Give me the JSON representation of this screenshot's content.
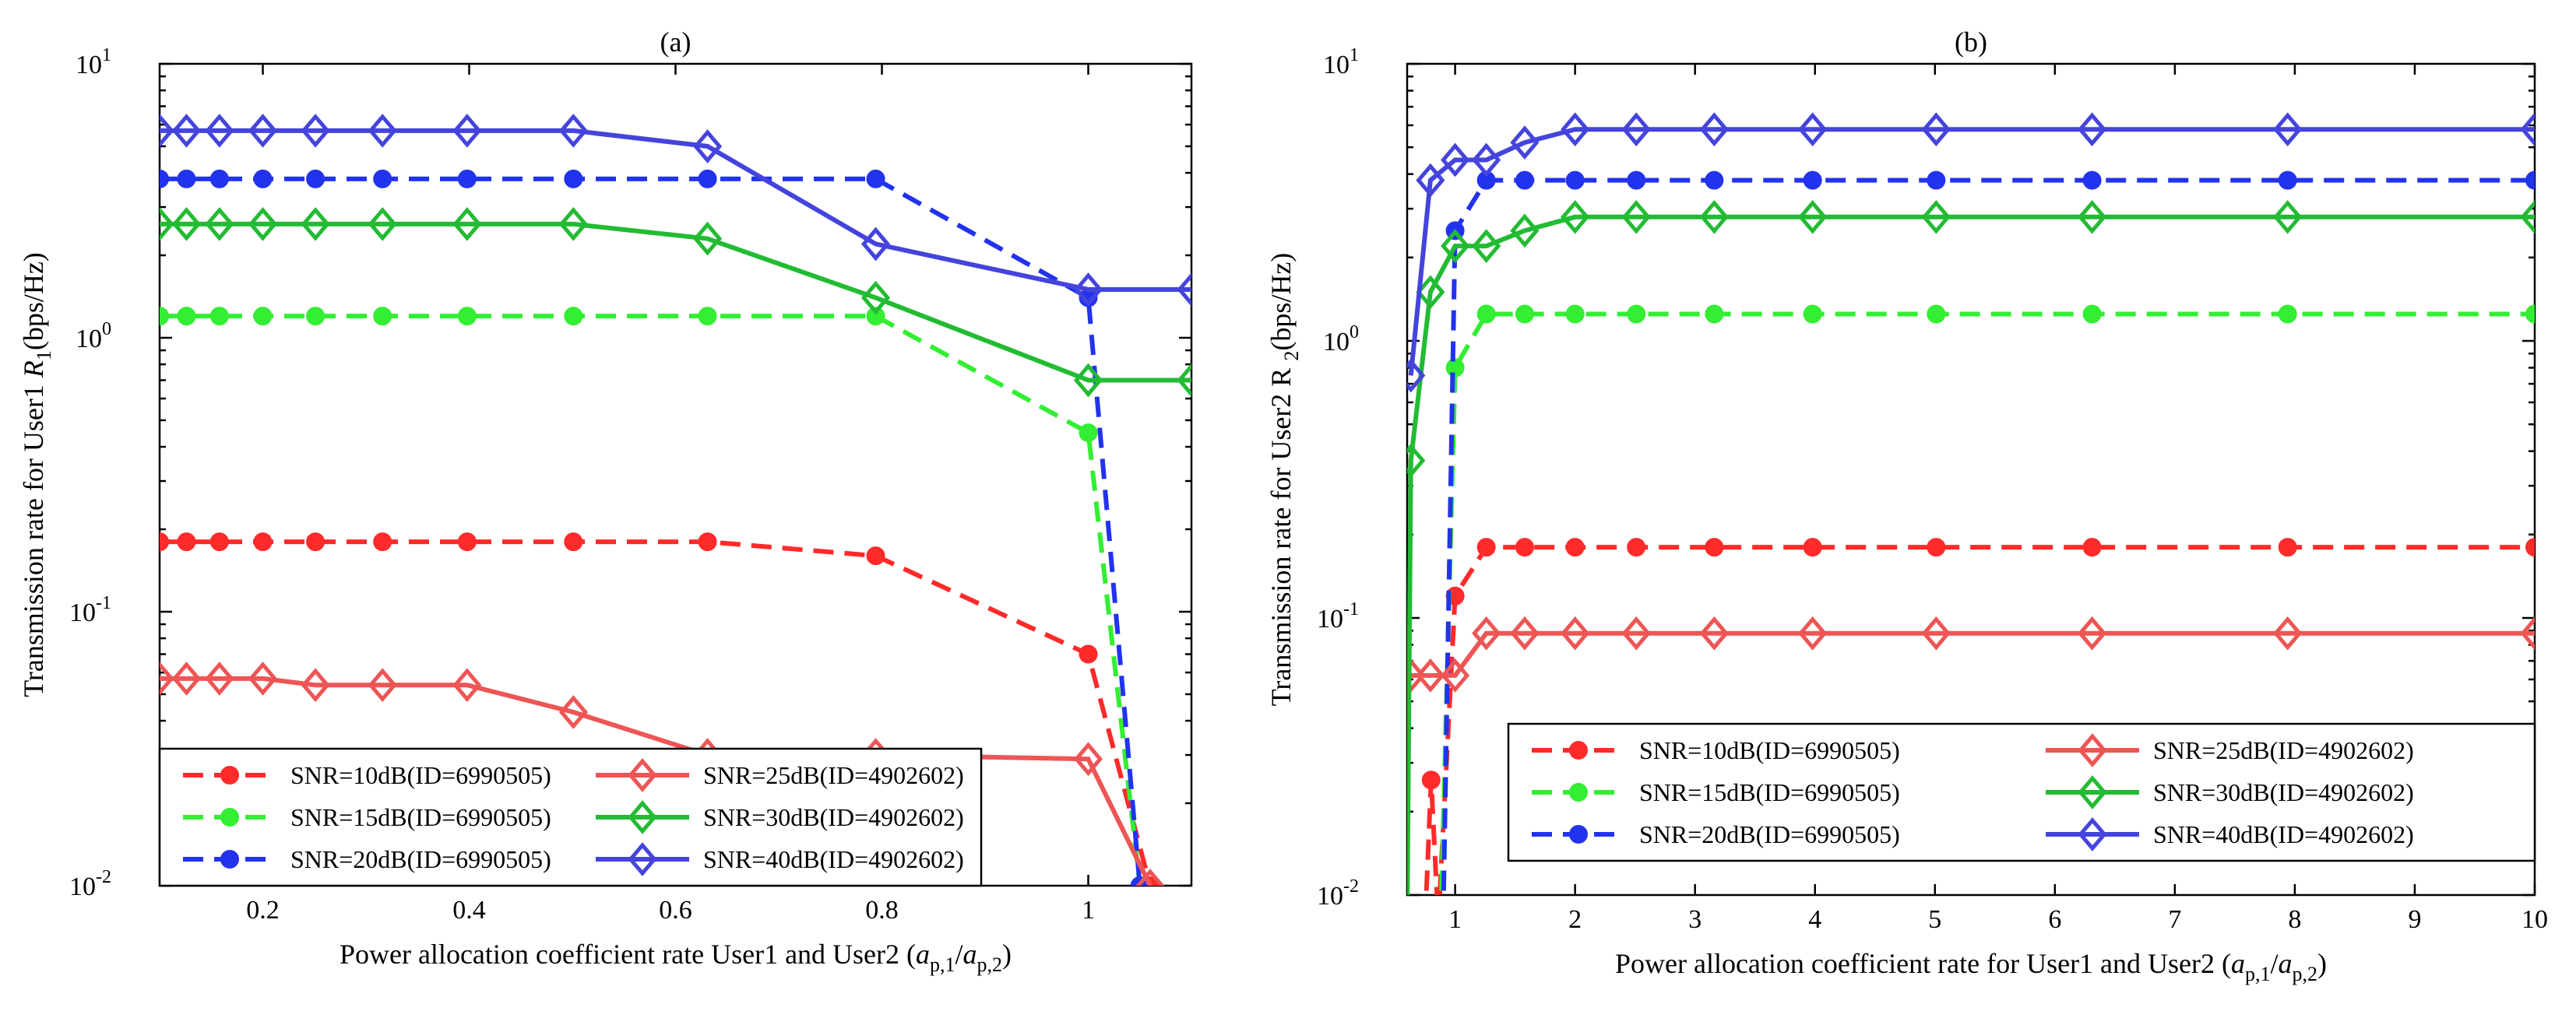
{
  "chart_data": [
    {
      "type": "line",
      "title": "(a)",
      "xlabel": "Power allocation coefficient rate User1 and User2 (",
      "xlabel_var": "a",
      "xlabel_sub1": "p,1",
      "xlabel_sub2": "p,2",
      "xlabel_close": ")",
      "ylabel": "Transmission rate for User1",
      "ylabel_var": "R",
      "ylabel_sub": "1",
      "ylabel_unit": "(bps/Hz)",
      "yscale": "log",
      "xlim": [
        0.1,
        1.1
      ],
      "ylim": [
        0.01,
        10
      ],
      "xticks": [
        0.2,
        0.4,
        0.6,
        0.8,
        1
      ],
      "xtick_labels": [
        "0.2",
        "0.4",
        "0.6",
        "0.8",
        "1"
      ],
      "yticks": [
        0.01,
        0.1,
        1,
        10
      ],
      "ytick_labels": [
        [
          "10",
          "-2"
        ],
        [
          "10",
          "-1"
        ],
        [
          "10",
          "0"
        ],
        [
          "10",
          "1"
        ]
      ],
      "legend_position": "lower-left",
      "series": [
        {
          "name": "SNR=10dB(ID=6990505)",
          "color": "#ff2a2a",
          "dash": "dashed",
          "marker": "circle",
          "x": [
            0.1,
            0.126,
            0.158,
            0.2,
            0.251,
            0.316,
            0.398,
            0.501,
            0.631,
            0.794,
            1.0,
            1.06
          ],
          "y": [
            0.18,
            0.18,
            0.18,
            0.18,
            0.18,
            0.18,
            0.18,
            0.18,
            0.18,
            0.16,
            0.07,
            0.01
          ]
        },
        {
          "name": "SNR=15dB(ID=6990505)",
          "color": "#33ee33",
          "dash": "dashed",
          "marker": "circle",
          "x": [
            0.1,
            0.126,
            0.158,
            0.2,
            0.251,
            0.316,
            0.398,
            0.501,
            0.631,
            0.794,
            1.0,
            1.05
          ],
          "y": [
            1.2,
            1.2,
            1.2,
            1.2,
            1.2,
            1.2,
            1.2,
            1.2,
            1.2,
            1.2,
            0.45,
            0.01
          ]
        },
        {
          "name": "SNR=20dB(ID=6990505)",
          "color": "#2233ee",
          "dash": "dashed",
          "marker": "circle",
          "x": [
            0.1,
            0.126,
            0.158,
            0.2,
            0.251,
            0.316,
            0.398,
            0.501,
            0.631,
            0.794,
            1.0,
            1.05
          ],
          "y": [
            3.8,
            3.8,
            3.8,
            3.8,
            3.8,
            3.8,
            3.8,
            3.8,
            3.8,
            3.8,
            1.4,
            0.01
          ]
        },
        {
          "name": "SNR=25dB(ID=4902602)",
          "color": "#ee5555",
          "dash": "solid",
          "marker": "diamond",
          "x": [
            0.1,
            0.126,
            0.158,
            0.2,
            0.251,
            0.316,
            0.398,
            0.501,
            0.631,
            0.794,
            1.0,
            1.06
          ],
          "y": [
            0.057,
            0.057,
            0.057,
            0.057,
            0.054,
            0.054,
            0.054,
            0.043,
            0.03,
            0.03,
            0.029,
            0.01
          ]
        },
        {
          "name": "SNR=30dB(ID=4902602)",
          "color": "#22bb33",
          "dash": "solid",
          "marker": "diamond",
          "x": [
            0.1,
            0.126,
            0.158,
            0.2,
            0.251,
            0.316,
            0.398,
            0.501,
            0.631,
            0.794,
            1.0,
            1.1
          ],
          "y": [
            2.6,
            2.6,
            2.6,
            2.6,
            2.6,
            2.6,
            2.6,
            2.6,
            2.3,
            1.4,
            0.7,
            0.7
          ]
        },
        {
          "name": "SNR=40dB(ID=4902602)",
          "color": "#4444dd",
          "dash": "solid",
          "marker": "diamond",
          "x": [
            0.1,
            0.126,
            0.158,
            0.2,
            0.251,
            0.316,
            0.398,
            0.501,
            0.631,
            0.794,
            1.0,
            1.1
          ],
          "y": [
            5.7,
            5.7,
            5.7,
            5.7,
            5.7,
            5.7,
            5.7,
            5.7,
            5.0,
            2.2,
            1.5,
            1.5
          ]
        }
      ]
    },
    {
      "type": "line",
      "title": "(b)",
      "xlabel": "Power allocation coefficient rate for User1 and User2 (",
      "xlabel_var": "a",
      "xlabel_sub1": "p,1",
      "xlabel_sub2": "p,2",
      "xlabel_close": ")",
      "ylabel": "Transmission rate for User2 R",
      "ylabel_sub": "2",
      "ylabel_unit": "(bps/Hz)",
      "yscale": "log",
      "xlim": [
        0.6,
        10
      ],
      "ylim": [
        0.01,
        10
      ],
      "xticks": [
        1,
        2,
        3,
        4,
        5,
        6,
        7,
        8,
        9,
        10
      ],
      "xtick_labels": [
        "1",
        "2",
        "3",
        "4",
        "5",
        "6",
        "7",
        "8",
        "9",
        "10"
      ],
      "yticks": [
        0.01,
        0.1,
        1,
        10
      ],
      "ytick_labels": [
        [
          "10",
          "-2"
        ],
        [
          "10",
          "-1"
        ],
        [
          "10",
          "0"
        ],
        [
          "10",
          "1"
        ]
      ],
      "legend_position": "lower-right",
      "series": [
        {
          "name": "SNR=10dB(ID=6990505)",
          "color": "#ff2a2a",
          "dash": "dashed",
          "marker": "circle",
          "x": [
            0.75,
            0.8,
            0.86,
            1.0,
            1.26,
            1.58,
            2.0,
            2.51,
            3.16,
            3.98,
            5.01,
            6.31,
            7.94,
            10
          ],
          "y": [
            0.008,
            0.026,
            0.008,
            0.12,
            0.18,
            0.18,
            0.18,
            0.18,
            0.18,
            0.18,
            0.18,
            0.18,
            0.18,
            0.18
          ]
        },
        {
          "name": "SNR=15dB(ID=6990505)",
          "color": "#33ee33",
          "dash": "dashed",
          "marker": "circle",
          "x": [
            0.88,
            1.0,
            1.26,
            1.58,
            2.0,
            2.51,
            3.16,
            3.98,
            5.01,
            6.31,
            7.94,
            10
          ],
          "y": [
            0.008,
            0.8,
            1.25,
            1.25,
            1.25,
            1.25,
            1.25,
            1.25,
            1.25,
            1.25,
            1.25,
            1.25
          ]
        },
        {
          "name": "SNR=20dB(ID=6990505)",
          "color": "#2233ee",
          "dash": "dashed",
          "marker": "circle",
          "x": [
            0.9,
            1.0,
            1.26,
            1.58,
            2.0,
            2.51,
            3.16,
            3.98,
            5.01,
            6.31,
            7.94,
            10
          ],
          "y": [
            0.008,
            2.5,
            3.8,
            3.8,
            3.8,
            3.8,
            3.8,
            3.8,
            3.8,
            3.8,
            3.8,
            3.8
          ]
        },
        {
          "name": "SNR=25dB(ID=4902602)",
          "color": "#ee5555",
          "dash": "solid",
          "marker": "diamond",
          "x": [
            0.631,
            0.794,
            1.0,
            1.26,
            1.58,
            2.0,
            2.51,
            3.16,
            3.98,
            5.01,
            6.31,
            7.94,
            10
          ],
          "y": [
            0.062,
            0.062,
            0.062,
            0.088,
            0.088,
            0.088,
            0.088,
            0.088,
            0.088,
            0.088,
            0.088,
            0.088,
            0.088
          ]
        },
        {
          "name": "SNR=30dB(ID=4902602)",
          "color": "#22bb33",
          "dash": "solid",
          "marker": "diamond",
          "x": [
            0.6,
            0.631,
            0.794,
            1.0,
            1.26,
            1.58,
            2.0,
            2.51,
            3.16,
            3.98,
            5.01,
            6.31,
            7.94,
            10
          ],
          "y": [
            0.008,
            0.37,
            1.5,
            2.2,
            2.2,
            2.5,
            2.8,
            2.8,
            2.8,
            2.8,
            2.8,
            2.8,
            2.8,
            2.8
          ]
        },
        {
          "name": "SNR=40dB(ID=4902602)",
          "color": "#4444dd",
          "dash": "solid",
          "marker": "diamond",
          "x": [
            0.631,
            0.794,
            1.0,
            1.26,
            1.58,
            2.0,
            2.51,
            3.16,
            3.98,
            5.01,
            6.31,
            7.94,
            10
          ],
          "y": [
            0.75,
            3.8,
            4.5,
            4.5,
            5.2,
            5.8,
            5.8,
            5.8,
            5.8,
            5.8,
            5.8,
            5.8,
            5.8
          ]
        }
      ]
    }
  ]
}
